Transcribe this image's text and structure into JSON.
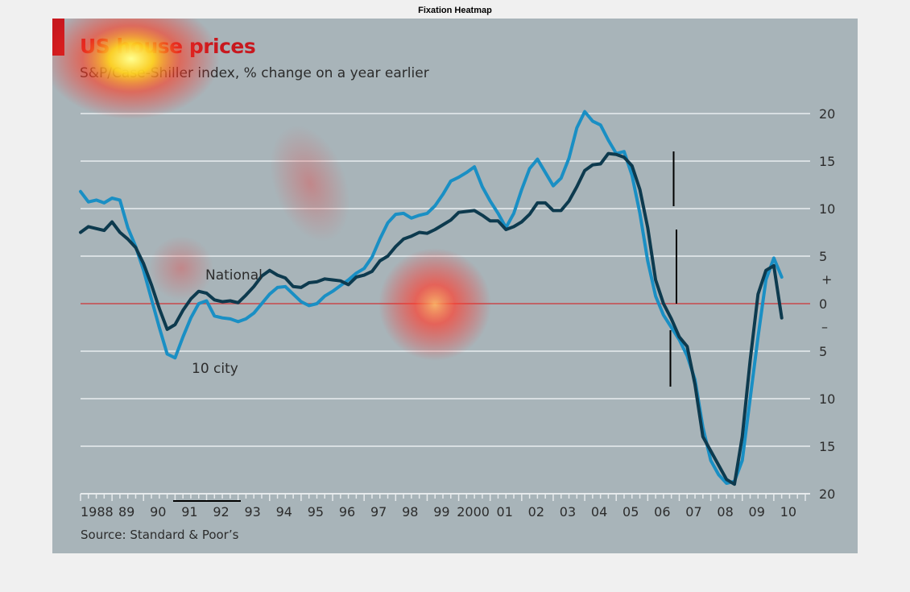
{
  "figure_title": "Fixation Heatmap",
  "source": "Source: Standard & Poor’s",
  "chart_data": {
    "type": "line",
    "title": "US house prices",
    "subtitle": "S&P/Case-Shiller index, % change on a year earlier",
    "xlabel": "",
    "ylabel": "",
    "xlim": [
      1988,
      2011
    ],
    "ylim": [
      -20,
      20
    ],
    "grid": true,
    "x_tick_labels": [
      "1988",
      "89",
      "90",
      "91",
      "92",
      "93",
      "94",
      "95",
      "96",
      "97",
      "98",
      "99",
      "2000",
      "01",
      "02",
      "03",
      "04",
      "05",
      "06",
      "07",
      "08",
      "09",
      "10"
    ],
    "y_ticks": [
      {
        "value": 20,
        "label": "20"
      },
      {
        "value": 15,
        "label": "15"
      },
      {
        "value": 10,
        "label": "10"
      },
      {
        "value": 5,
        "label": "5"
      },
      {
        "value": 0,
        "label": "0"
      },
      {
        "value": -5,
        "label": "5"
      },
      {
        "value": -10,
        "label": "10"
      },
      {
        "value": -15,
        "label": "15"
      },
      {
        "value": -20,
        "label": "20"
      }
    ],
    "sign_labels": {
      "plus": "+",
      "minus": "–"
    },
    "series": [
      {
        "name": "National",
        "color": "#0d3a4e",
        "x": [
          1988.0,
          1988.25,
          1988.5,
          1988.75,
          1989.0,
          1989.25,
          1989.5,
          1989.75,
          1990.0,
          1990.25,
          1990.5,
          1990.75,
          1991.0,
          1991.25,
          1991.5,
          1991.75,
          1992.0,
          1992.25,
          1992.5,
          1992.75,
          1993.0,
          1993.25,
          1993.5,
          1993.75,
          1994.0,
          1994.25,
          1994.5,
          1994.75,
          1995.0,
          1995.25,
          1995.5,
          1995.75,
          1996.0,
          1996.25,
          1996.5,
          1996.75,
          1997.0,
          1997.25,
          1997.5,
          1997.75,
          1998.0,
          1998.25,
          1998.5,
          1998.75,
          1999.0,
          1999.25,
          1999.5,
          1999.75,
          2000.0,
          2000.25,
          2000.5,
          2000.75,
          2001.0,
          2001.25,
          2001.5,
          2001.75,
          2002.0,
          2002.25,
          2002.5,
          2002.75,
          2003.0,
          2003.25,
          2003.5,
          2003.75,
          2004.0,
          2004.25,
          2004.5,
          2004.75,
          2005.0,
          2005.25,
          2005.5,
          2005.75,
          2006.0,
          2006.25,
          2006.5,
          2006.75,
          2007.0,
          2007.25,
          2007.5,
          2007.75,
          2008.0,
          2008.25,
          2008.5,
          2008.75,
          2009.0,
          2009.25,
          2009.5,
          2009.75,
          2010.0,
          2010.25
        ],
        "values": [
          7.5,
          8.1,
          7.9,
          7.7,
          8.6,
          7.5,
          6.8,
          5.9,
          4.2,
          2.0,
          -0.5,
          -2.7,
          -2.2,
          -0.7,
          0.5,
          1.3,
          1.1,
          0.4,
          0.2,
          0.3,
          0.1,
          0.9,
          1.8,
          2.9,
          3.5,
          3.0,
          2.7,
          1.8,
          1.7,
          2.2,
          2.3,
          2.6,
          2.5,
          2.4,
          2.0,
          2.8,
          3.0,
          3.4,
          4.5,
          5.0,
          6.0,
          6.8,
          7.1,
          7.5,
          7.4,
          7.8,
          8.3,
          8.8,
          9.6,
          9.7,
          9.8,
          9.3,
          8.7,
          8.7,
          7.8,
          8.1,
          8.6,
          9.4,
          10.6,
          10.6,
          9.8,
          9.8,
          10.8,
          12.3,
          14.0,
          14.6,
          14.7,
          15.8,
          15.7,
          15.4,
          14.5,
          12.0,
          8.0,
          2.5,
          0.0,
          -1.6,
          -3.5,
          -4.5,
          -8.5,
          -14.0,
          -15.5,
          -17.0,
          -18.5,
          -19.0,
          -14.0,
          -6.0,
          1.0,
          3.5,
          4.0,
          -1.5
        ]
      },
      {
        "name": "10 city",
        "color": "#1a8fc4",
        "x": [
          1988.0,
          1988.25,
          1988.5,
          1988.75,
          1989.0,
          1989.25,
          1989.5,
          1989.75,
          1990.0,
          1990.25,
          1990.5,
          1990.75,
          1991.0,
          1991.25,
          1991.5,
          1991.75,
          1992.0,
          1992.25,
          1992.5,
          1992.75,
          1993.0,
          1993.25,
          1993.5,
          1993.75,
          1994.0,
          1994.25,
          1994.5,
          1994.75,
          1995.0,
          1995.25,
          1995.5,
          1995.75,
          1996.0,
          1996.25,
          1996.5,
          1996.75,
          1997.0,
          1997.25,
          1997.5,
          1997.75,
          1998.0,
          1998.25,
          1998.5,
          1998.75,
          1999.0,
          1999.25,
          1999.5,
          1999.75,
          2000.0,
          2000.25,
          2000.5,
          2000.75,
          2001.0,
          2001.25,
          2001.5,
          2001.75,
          2002.0,
          2002.25,
          2002.5,
          2002.75,
          2003.0,
          2003.25,
          2003.5,
          2003.75,
          2004.0,
          2004.25,
          2004.5,
          2004.75,
          2005.0,
          2005.25,
          2005.5,
          2005.75,
          2006.0,
          2006.25,
          2006.5,
          2006.75,
          2007.0,
          2007.25,
          2007.5,
          2007.75,
          2008.0,
          2008.25,
          2008.5,
          2008.75,
          2009.0,
          2009.25,
          2009.5,
          2009.75,
          2010.0,
          2010.25
        ],
        "values": [
          11.8,
          10.7,
          10.9,
          10.6,
          11.1,
          10.9,
          8.0,
          6.0,
          3.5,
          0.5,
          -2.5,
          -5.3,
          -5.7,
          -3.5,
          -1.5,
          0.0,
          0.3,
          -1.3,
          -1.5,
          -1.6,
          -1.9,
          -1.6,
          -1.0,
          0.0,
          1.0,
          1.7,
          1.8,
          1.0,
          0.2,
          -0.2,
          0.0,
          0.8,
          1.3,
          1.9,
          2.5,
          3.2,
          3.7,
          4.9,
          6.8,
          8.5,
          9.4,
          9.5,
          9.0,
          9.3,
          9.5,
          10.3,
          11.5,
          12.9,
          13.3,
          13.8,
          14.4,
          12.3,
          10.8,
          9.5,
          8.0,
          9.5,
          12.0,
          14.2,
          15.2,
          13.8,
          12.4,
          13.2,
          15.3,
          18.5,
          20.2,
          19.2,
          18.8,
          17.2,
          15.8,
          16.0,
          13.5,
          9.5,
          4.5,
          0.8,
          -1.2,
          -2.5,
          -3.8,
          -5.5,
          -8.0,
          -13.0,
          -16.5,
          -18.0,
          -18.9,
          -18.7,
          -16.5,
          -10.0,
          -3.5,
          2.5,
          4.8,
          2.8
        ]
      }
    ],
    "annotations": [
      {
        "text": "National",
        "series": "National"
      },
      {
        "text": "10 city",
        "series": "10 city"
      }
    ]
  }
}
